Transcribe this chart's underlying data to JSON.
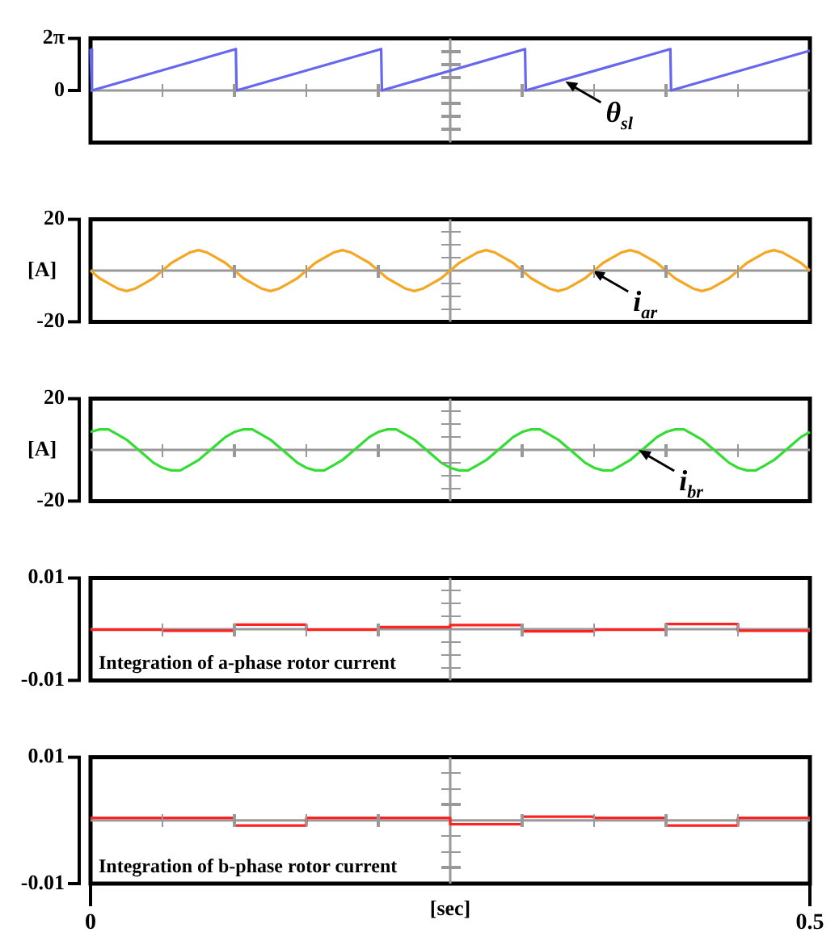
{
  "chart_data": [
    {
      "type": "line",
      "x": [
        0,
        0.001,
        0.101,
        0.1015,
        0.202,
        0.2025,
        0.302,
        0.3025,
        0.403,
        0.4035,
        0.5
      ],
      "values": [
        5.0,
        0,
        5.0,
        0,
        5.0,
        0,
        5.0,
        0,
        5.0,
        0,
        4.8
      ],
      "color": "#6666ee",
      "xlim": [
        0,
        0.5
      ],
      "ylim": [
        -6.283,
        6.283
      ],
      "yticks": [
        0,
        {
          "value": 6.283,
          "label": "2π"
        }
      ],
      "tick_labels": "y",
      "ref_lines": [
        {
          "axis": "y",
          "value": 0,
          "color": "#999999"
        },
        {
          "axis": "x",
          "value": 0.25,
          "color": "#999999"
        }
      ],
      "annotations": [
        {
          "text": "θ$_{sl}$",
          "x": 0.33,
          "y": 1.1
        }
      ]
    },
    {
      "type": "line",
      "ylabel": "[A]",
      "x": [
        0,
        0.00625,
        0.0125,
        0.01875,
        0.025,
        0.03125,
        0.0375,
        0.04375,
        0.05,
        0.05625,
        0.0625,
        0.06875,
        0.075,
        0.08125,
        0.0875,
        0.09375,
        0.1,
        0.10625,
        0.1125,
        0.11875,
        0.125,
        0.13125,
        0.1375,
        0.14375,
        0.15,
        0.15625,
        0.1625,
        0.16875,
        0.175,
        0.18125,
        0.1875,
        0.19375,
        0.2,
        0.20625,
        0.2125,
        0.21875,
        0.225,
        0.23125,
        0.2375,
        0.24375,
        0.25,
        0.25625,
        0.2625,
        0.26875,
        0.275,
        0.28125,
        0.2875,
        0.29375,
        0.3,
        0.30625,
        0.3125,
        0.31875,
        0.325,
        0.33125,
        0.3375,
        0.34375,
        0.35,
        0.35625,
        0.3625,
        0.36875,
        0.375,
        0.38125,
        0.3875,
        0.39375,
        0.4,
        0.40625,
        0.4125,
        0.41875,
        0.425,
        0.43125,
        0.4375,
        0.44375,
        0.45,
        0.45625,
        0.4625,
        0.46875,
        0.475,
        0.48125,
        0.4875,
        0.49375,
        0.5
      ],
      "values": [
        0,
        -3,
        -5,
        -7,
        -8,
        -7,
        -5,
        -3,
        0,
        3,
        5,
        7,
        8,
        7,
        5,
        3,
        0,
        -3,
        -5,
        -7,
        -8,
        -7,
        -5,
        -3,
        0,
        3,
        5,
        7,
        8,
        7,
        5,
        3,
        0,
        -3,
        -5,
        -7,
        -8,
        -7,
        -5,
        -3,
        0,
        3,
        5,
        7,
        8,
        7,
        5,
        3,
        0,
        -3,
        -5,
        -7,
        -8,
        -7,
        -5,
        -3,
        0,
        3,
        5,
        7,
        8,
        7,
        5,
        3,
        0,
        -3,
        -5,
        -7,
        -8,
        -7,
        -5,
        -3,
        0,
        3,
        5,
        7,
        8,
        7,
        5,
        3,
        0
      ],
      "color": "#f5a623",
      "xlim": [
        0,
        0.5
      ],
      "ylim": [
        -20,
        20
      ],
      "yticks": [
        -20,
        20
      ],
      "tick_labels": "y",
      "ref_lines": [
        {
          "axis": "y",
          "value": 0,
          "color": "#999999"
        },
        {
          "axis": "x",
          "value": 0.25,
          "color": "#999999"
        }
      ],
      "annotations": [
        {
          "text": "i$_{ar}$",
          "x": 0.349,
          "y": 0
        }
      ]
    },
    {
      "type": "line",
      "ylabel": "[A]",
      "x": [
        0,
        0.00625,
        0.0125,
        0.01875,
        0.025,
        0.03125,
        0.0375,
        0.04375,
        0.05,
        0.05625,
        0.0625,
        0.06875,
        0.075,
        0.08125,
        0.0875,
        0.09375,
        0.1,
        0.10625,
        0.1125,
        0.11875,
        0.125,
        0.13125,
        0.1375,
        0.14375,
        0.15,
        0.15625,
        0.1625,
        0.16875,
        0.175,
        0.18125,
        0.1875,
        0.19375,
        0.2,
        0.20625,
        0.2125,
        0.21875,
        0.225,
        0.23125,
        0.2375,
        0.24375,
        0.25,
        0.25625,
        0.2625,
        0.26875,
        0.275,
        0.28125,
        0.2875,
        0.29375,
        0.3,
        0.30625,
        0.3125,
        0.31875,
        0.325,
        0.33125,
        0.3375,
        0.34375,
        0.35,
        0.35625,
        0.3625,
        0.36875,
        0.375,
        0.38125,
        0.3875,
        0.39375,
        0.4,
        0.40625,
        0.4125,
        0.41875,
        0.425,
        0.43125,
        0.4375,
        0.44375,
        0.45,
        0.45625,
        0.4625,
        0.46875,
        0.475,
        0.48125,
        0.4875,
        0.49375,
        0.5
      ],
      "values": [
        7,
        8,
        8,
        6,
        4,
        1,
        -2,
        -5,
        -7,
        -8,
        -8,
        -6,
        -4,
        -1,
        2,
        5,
        7,
        8,
        8,
        6,
        4,
        1,
        -2,
        -5,
        -7,
        -8,
        -8,
        -6,
        -4,
        -1,
        2,
        5,
        7,
        8,
        8,
        6,
        4,
        1,
        -2,
        -5,
        -7,
        -8,
        -8,
        -6,
        -4,
        -1,
        2,
        5,
        7,
        8,
        8,
        6,
        4,
        1,
        -2,
        -5,
        -7,
        -8,
        -8,
        -6,
        -4,
        -1,
        2,
        5,
        7,
        8,
        8,
        6,
        4,
        1,
        -2,
        -5,
        -7,
        -8,
        -8,
        -6,
        -4,
        -1,
        2,
        5,
        7
      ],
      "color": "#33dd33",
      "xlim": [
        0,
        0.5
      ],
      "ylim": [
        -20,
        20
      ],
      "yticks": [
        -20,
        20
      ],
      "tick_labels": "y",
      "ref_lines": [
        {
          "axis": "y",
          "value": 0,
          "color": "#999999"
        },
        {
          "axis": "x",
          "value": 0.25,
          "color": "#999999"
        }
      ],
      "annotations": [
        {
          "text": "i$_{br}$",
          "x": 0.381,
          "y": 0
        }
      ]
    },
    {
      "type": "step",
      "title": "Integration of a-phase rotor current",
      "x": [
        0,
        0.05,
        0.1,
        0.15,
        0.2,
        0.25,
        0.3,
        0.35,
        0.4,
        0.45,
        0.5
      ],
      "values": [
        -0.0001,
        -0.0003,
        0.0009,
        -0.0001,
        0.0004,
        0.0008,
        -0.0004,
        -0.0001,
        0.001,
        -0.0003,
        -0.0003
      ],
      "color": "#ff2222",
      "xlim": [
        0,
        0.5
      ],
      "ylim": [
        -0.01,
        0.01
      ],
      "yticks": [
        -0.01,
        0.01
      ],
      "tick_labels": "y",
      "ref_lines": [
        {
          "axis": "y",
          "value": 0,
          "color": "#999999"
        },
        {
          "axis": "x",
          "value": 0.25,
          "color": "#999999"
        }
      ]
    },
    {
      "type": "step",
      "title": "Integration of b-phase rotor current",
      "xlabel": "[sec]",
      "x": [
        0,
        0.05,
        0.1,
        0.15,
        0.2,
        0.25,
        0.3,
        0.35,
        0.4,
        0.45,
        0.5
      ],
      "values": [
        0.0004,
        0.0004,
        -0.0008,
        0.0004,
        0.0004,
        -0.0006,
        0.0006,
        0.0004,
        -0.0008,
        0.0004,
        0.0004
      ],
      "color": "#ff2222",
      "xlim": [
        0,
        0.5
      ],
      "xticks": [
        0,
        0.5
      ],
      "ylim": [
        -0.01,
        0.01
      ],
      "yticks": [
        -0.01,
        0.01
      ],
      "ref_lines": [
        {
          "axis": "y",
          "value": 0,
          "color": "#999999"
        },
        {
          "axis": "x",
          "value": 0.25,
          "color": "#999999"
        }
      ]
    }
  ]
}
